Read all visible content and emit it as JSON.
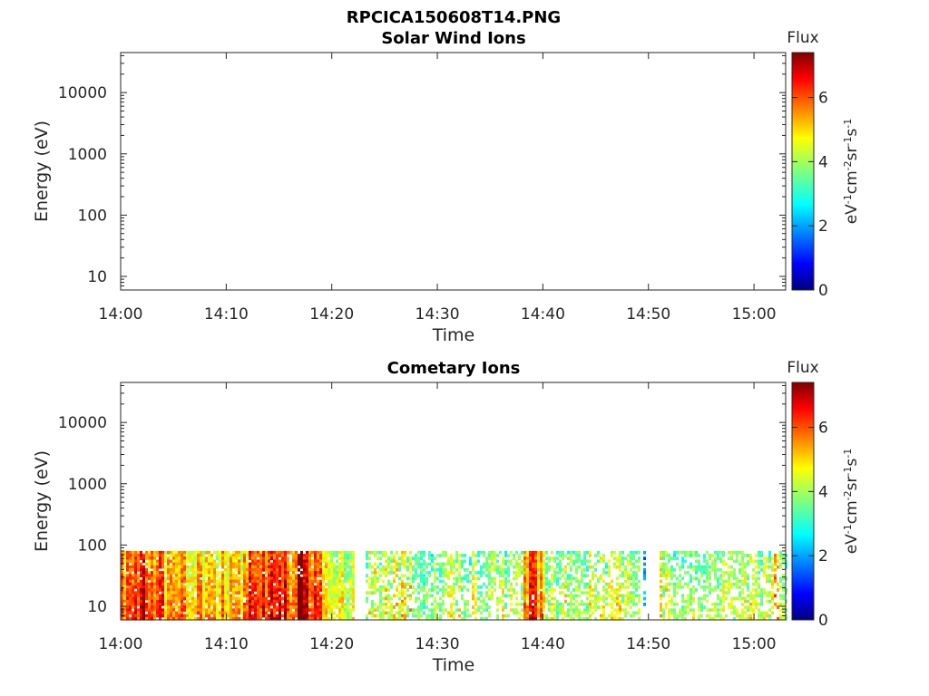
{
  "figure_title": "RPCICA150608T14.PNG",
  "chart_data": [
    {
      "type": "heatmap",
      "title": "Solar Wind Ions",
      "xlabel": "Time",
      "ylabel": "Energy (eV)",
      "x_ticks": [
        "14:00",
        "14:10",
        "14:20",
        "14:30",
        "14:40",
        "14:50",
        "15:00"
      ],
      "x_range": [
        "14:00",
        "15:03"
      ],
      "y_scale": "log",
      "y_ticks": [
        "10",
        "100",
        "1000",
        "10000"
      ],
      "y_range": [
        6,
        45000
      ],
      "colorbar": {
        "title": "Flux",
        "units": "eV-1 cm-2 sr-1 s-1",
        "range": [
          0,
          7.4
        ],
        "ticks": [
          "0",
          "2",
          "4",
          "6"
        ],
        "colormap": "jet"
      },
      "data": "empty — no flux shown"
    },
    {
      "type": "heatmap",
      "title": "Cometary Ions",
      "xlabel": "Time",
      "ylabel": "Energy (eV)",
      "x_ticks": [
        "14:00",
        "14:10",
        "14:20",
        "14:30",
        "14:40",
        "14:50",
        "15:00"
      ],
      "x_range": [
        "14:00",
        "15:03"
      ],
      "y_scale": "log",
      "y_ticks": [
        "10",
        "100",
        "1000",
        "10000"
      ],
      "y_range": [
        6,
        45000
      ],
      "energy_band_eV": [
        6,
        80
      ],
      "colorbar": {
        "title": "Flux",
        "units": "eV-1 cm-2 sr-1 s-1",
        "range": [
          0,
          7.4
        ],
        "ticks": [
          "0",
          "2",
          "4",
          "6"
        ],
        "colormap": "jet"
      },
      "flux_segments": [
        {
          "start": "14:00",
          "end": "14:04",
          "level": 5.5
        },
        {
          "start": "14:04",
          "end": "14:09",
          "level": 5.0
        },
        {
          "start": "14:09",
          "end": "14:12",
          "level": 4.8
        },
        {
          "start": "14:12",
          "end": "14:19",
          "level": 5.8
        },
        {
          "start": "14:19",
          "end": "14:22",
          "level": 4.2
        },
        {
          "start": "14:22",
          "end": "14:28",
          "level": 4.0
        },
        {
          "start": "14:28",
          "end": "14:38",
          "level": 3.6
        },
        {
          "start": "14:38",
          "end": "14:40",
          "level": 4.8
        },
        {
          "start": "14:40",
          "end": "14:49",
          "level": 3.7
        },
        {
          "start": "14:49",
          "end": "14:51",
          "level": 2.6
        },
        {
          "start": "14:51",
          "end": "15:03",
          "level": 3.8
        }
      ],
      "gaps": [
        [
          "14:22",
          "14:23"
        ],
        [
          "14:49",
          "14:51"
        ]
      ],
      "peaks": [
        "14:02",
        "14:17",
        "14:39",
        "15:02"
      ]
    }
  ],
  "colors": {
    "jet": [
      "#00007f",
      "#0000ff",
      "#007fff",
      "#00ffff",
      "#7fff7f",
      "#ffff00",
      "#ff7f00",
      "#ff0000",
      "#7f0000"
    ]
  }
}
